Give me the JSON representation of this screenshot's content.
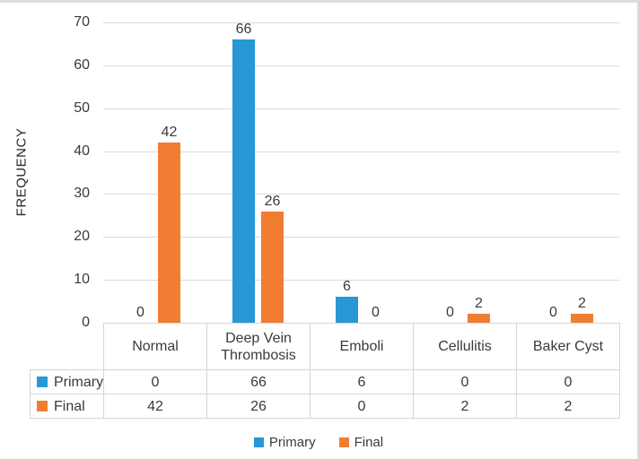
{
  "chart_data": {
    "type": "bar",
    "title": "",
    "xlabel": "",
    "ylabel": "FREQUENCY",
    "categories": [
      "Normal",
      "Deep Vein Thrombosis",
      "Emboli",
      "Cellulitis",
      "Baker Cyst"
    ],
    "series": [
      {
        "name": "Primary",
        "color": "#2797d5",
        "values": [
          0,
          66,
          6,
          0,
          0
        ]
      },
      {
        "name": "Final",
        "color": "#f07d31",
        "values": [
          42,
          26,
          0,
          2,
          2
        ]
      }
    ],
    "ylim": [
      0,
      70
    ],
    "yticks": [
      0,
      10,
      20,
      30,
      40,
      50,
      60,
      70
    ],
    "grid": true,
    "gridline_color": "#d9d9d9",
    "legend_position": "bottom",
    "data_table_shown": true,
    "data_labels_shown": true
  },
  "colors": {
    "frame_border": "#dcdcdc",
    "table_border": "#d6d6d6",
    "text": "#3a3a3a"
  }
}
